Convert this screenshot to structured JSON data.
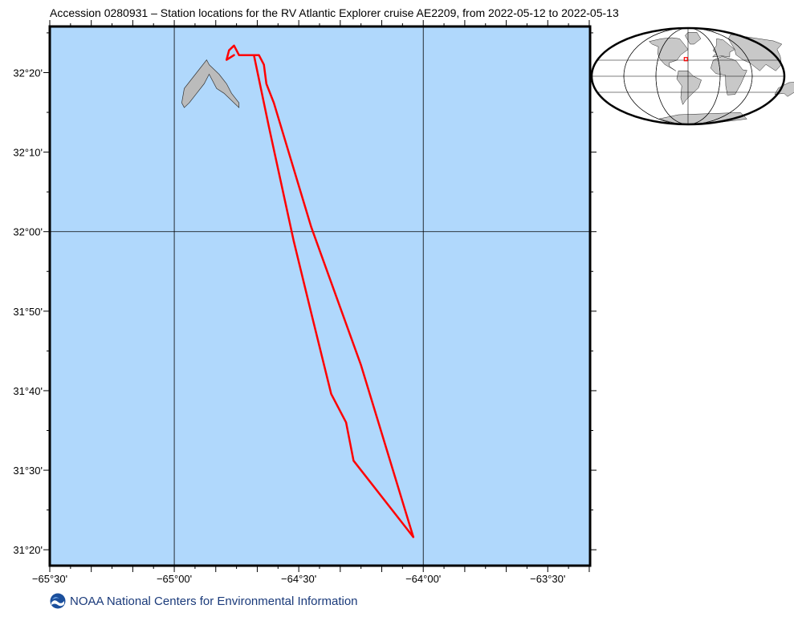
{
  "title": "Accession 0280931 – Station locations for the RV Atlantic Explorer cruise AE2209, from 2022-05-12 to 2022-05-13",
  "footer": {
    "text": "NOAA National Centers for Environmental Information",
    "logo_icon": "noaa-logo-icon"
  },
  "colors": {
    "ocean": "#b0d8fc",
    "land": "#bbbbbb",
    "track": "#ff0000",
    "frame": "#000000"
  },
  "map": {
    "lon_range": [
      -65.5,
      -63.33
    ],
    "lat_range": [
      31.3,
      32.43
    ],
    "lon_ticks": [
      "−65°30'",
      "−65°00'",
      "−64°30'",
      "−64°00'",
      "−63°30'"
    ],
    "lat_ticks": [
      "32°20'",
      "32°10'",
      "32°00'",
      "31°50'",
      "31°40'",
      "31°30'",
      "31°20'"
    ],
    "gridlines": {
      "lon": [
        -65.0,
        -64.0
      ],
      "lat": [
        32.0
      ]
    },
    "track": {
      "outbound": [
        [
          -64.04,
          31.36
        ],
        [
          -64.25,
          31.72
        ],
        [
          -64.45,
          32.01
        ],
        [
          -64.6,
          32.27
        ],
        [
          -64.63,
          32.31
        ],
        [
          -64.64,
          32.35
        ],
        [
          -64.66,
          32.37
        ],
        [
          -64.69,
          32.37
        ],
        [
          -64.71,
          32.37
        ]
      ],
      "return": [
        [
          -64.72,
          32.37
        ],
        [
          -64.68,
          32.37
        ],
        [
          -64.62,
          32.22
        ],
        [
          -64.52,
          31.98
        ],
        [
          -64.45,
          31.83
        ],
        [
          -64.37,
          31.66
        ],
        [
          -64.31,
          31.6
        ],
        [
          -64.28,
          31.52
        ],
        [
          -64.04,
          31.36
        ]
      ],
      "loop": [
        [
          -64.72,
          32.37
        ],
        [
          -64.74,
          32.37
        ],
        [
          -64.76,
          32.39
        ],
        [
          -64.78,
          32.38
        ],
        [
          -64.79,
          32.36
        ],
        [
          -64.76,
          32.37
        ]
      ]
    },
    "land": {
      "name": "Bermuda",
      "outline": [
        [
          -64.86,
          32.35
        ],
        [
          -64.82,
          32.33
        ],
        [
          -64.79,
          32.31
        ],
        [
          -64.77,
          32.29
        ],
        [
          -64.74,
          32.27
        ],
        [
          -64.74,
          32.26
        ],
        [
          -64.76,
          32.27
        ],
        [
          -64.78,
          32.28
        ],
        [
          -64.8,
          32.29
        ],
        [
          -64.83,
          32.3
        ],
        [
          -64.86,
          32.33
        ],
        [
          -64.88,
          32.31
        ],
        [
          -64.91,
          32.29
        ],
        [
          -64.94,
          32.27
        ],
        [
          -64.96,
          32.26
        ],
        [
          -64.97,
          32.27
        ],
        [
          -64.96,
          32.3
        ],
        [
          -64.93,
          32.32
        ],
        [
          -64.9,
          32.34
        ],
        [
          -64.87,
          32.36
        ],
        [
          -64.86,
          32.35
        ]
      ]
    }
  },
  "inset": {
    "type": "globe-locator",
    "marker": {
      "lon": -64.3,
      "lat": 31.9
    }
  }
}
